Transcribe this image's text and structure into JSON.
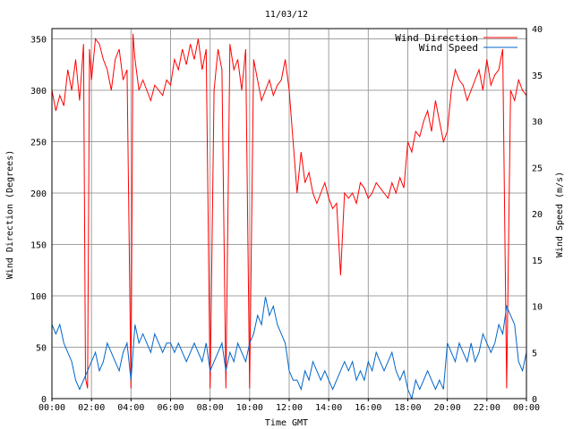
{
  "chart_data": {
    "type": "line",
    "title": "11/03/12",
    "xlabel": "Time GMT",
    "ylabel_left": "Wind Direction (Degrees)",
    "ylabel_right": "Wind Speed (m/s)",
    "x_ticks": [
      "00:00",
      "02:00",
      "04:00",
      "06:00",
      "08:00",
      "10:00",
      "12:00",
      "14:00",
      "16:00",
      "18:00",
      "20:00",
      "22:00",
      "00:00"
    ],
    "xlim_hours": [
      0,
      24
    ],
    "ylim_left": [
      0,
      360
    ],
    "ylim_right": [
      0,
      40
    ],
    "y_ticks_left": [
      0,
      50,
      100,
      150,
      200,
      250,
      300,
      350
    ],
    "y_ticks_right": [
      0,
      5,
      10,
      15,
      20,
      25,
      30,
      35,
      40
    ],
    "grid": true,
    "legend_position": "top-right",
    "series": [
      {
        "name": "Wind Direction",
        "axis": "left",
        "color": "#ff0000",
        "x_hours": [
          0,
          0.2,
          0.4,
          0.6,
          0.8,
          1.0,
          1.2,
          1.4,
          1.6,
          1.7,
          1.8,
          1.9,
          2.0,
          2.2,
          2.4,
          2.6,
          2.8,
          3.0,
          3.2,
          3.4,
          3.6,
          3.8,
          4.0,
          4.1,
          4.2,
          4.4,
          4.6,
          4.8,
          5.0,
          5.2,
          5.4,
          5.6,
          5.8,
          6.0,
          6.2,
          6.4,
          6.6,
          6.8,
          7.0,
          7.2,
          7.4,
          7.6,
          7.8,
          8.0,
          8.2,
          8.4,
          8.6,
          8.8,
          9.0,
          9.2,
          9.4,
          9.6,
          9.8,
          10.0,
          10.2,
          10.4,
          10.6,
          10.8,
          11.0,
          11.2,
          11.4,
          11.6,
          11.8,
          12.0,
          12.2,
          12.4,
          12.6,
          12.8,
          13.0,
          13.2,
          13.4,
          13.6,
          13.8,
          14.0,
          14.2,
          14.4,
          14.6,
          14.8,
          15.0,
          15.2,
          15.4,
          15.6,
          15.8,
          16.0,
          16.2,
          16.4,
          16.6,
          16.8,
          17.0,
          17.2,
          17.4,
          17.6,
          17.8,
          18.0,
          18.2,
          18.4,
          18.6,
          18.8,
          19.0,
          19.2,
          19.4,
          19.6,
          19.8,
          20.0,
          20.2,
          20.4,
          20.6,
          20.8,
          21.0,
          21.2,
          21.4,
          21.6,
          21.8,
          22.0,
          22.2,
          22.4,
          22.6,
          22.8,
          23.0,
          23.2,
          23.4,
          23.6,
          23.8,
          24.0
        ],
        "values": [
          300,
          280,
          295,
          285,
          320,
          300,
          330,
          290,
          345,
          20,
          10,
          340,
          310,
          350,
          345,
          330,
          320,
          300,
          330,
          340,
          310,
          320,
          10,
          355,
          330,
          300,
          310,
          300,
          290,
          305,
          300,
          295,
          310,
          305,
          330,
          320,
          340,
          325,
          345,
          330,
          350,
          320,
          340,
          10,
          300,
          340,
          320,
          10,
          345,
          320,
          330,
          300,
          340,
          10,
          330,
          310,
          290,
          300,
          310,
          295,
          305,
          310,
          330,
          300,
          250,
          200,
          240,
          210,
          220,
          200,
          190,
          200,
          210,
          195,
          185,
          190,
          120,
          200,
          195,
          200,
          190,
          210,
          205,
          195,
          200,
          210,
          205,
          200,
          195,
          210,
          200,
          215,
          205,
          250,
          240,
          260,
          255,
          270,
          280,
          260,
          290,
          270,
          250,
          260,
          300,
          320,
          310,
          305,
          290,
          300,
          310,
          320,
          300,
          330,
          305,
          315,
          320,
          340,
          10,
          300,
          290,
          310,
          300,
          295
        ]
      },
      {
        "name": "Wind Speed",
        "axis": "right",
        "color": "#0066cc",
        "x_hours": [
          0,
          0.2,
          0.4,
          0.6,
          0.8,
          1.0,
          1.2,
          1.4,
          1.6,
          1.8,
          2.0,
          2.2,
          2.4,
          2.6,
          2.8,
          3.0,
          3.2,
          3.4,
          3.6,
          3.8,
          4.0,
          4.2,
          4.4,
          4.6,
          4.8,
          5.0,
          5.2,
          5.4,
          5.6,
          5.8,
          6.0,
          6.2,
          6.4,
          6.6,
          6.8,
          7.0,
          7.2,
          7.4,
          7.6,
          7.8,
          8.0,
          8.2,
          8.4,
          8.6,
          8.8,
          9.0,
          9.2,
          9.4,
          9.6,
          9.8,
          10.0,
          10.2,
          10.4,
          10.6,
          10.8,
          11.0,
          11.2,
          11.4,
          11.6,
          11.8,
          12.0,
          12.2,
          12.4,
          12.6,
          12.8,
          13.0,
          13.2,
          13.4,
          13.6,
          13.8,
          14.0,
          14.2,
          14.4,
          14.6,
          14.8,
          15.0,
          15.2,
          15.4,
          15.6,
          15.8,
          16.0,
          16.2,
          16.4,
          16.6,
          16.8,
          17.0,
          17.2,
          17.4,
          17.6,
          17.8,
          18.0,
          18.2,
          18.4,
          18.6,
          18.8,
          19.0,
          19.2,
          19.4,
          19.6,
          19.8,
          20.0,
          20.2,
          20.4,
          20.6,
          20.8,
          21.0,
          21.2,
          21.4,
          21.6,
          21.8,
          22.0,
          22.2,
          22.4,
          22.6,
          22.8,
          23.0,
          23.2,
          23.4,
          23.6,
          23.8,
          24.0
        ],
        "values": [
          8,
          7,
          8,
          6,
          5,
          4,
          2,
          1,
          2,
          3,
          4,
          5,
          3,
          4,
          6,
          5,
          4,
          3,
          5,
          6,
          2,
          8,
          6,
          7,
          6,
          5,
          7,
          6,
          5,
          6,
          6,
          5,
          6,
          5,
          4,
          5,
          6,
          5,
          4,
          6,
          3,
          4,
          5,
          6,
          3,
          5,
          4,
          6,
          5,
          4,
          6,
          7,
          9,
          8,
          11,
          9,
          10,
          8,
          7,
          6,
          3,
          2,
          2,
          1,
          3,
          2,
          4,
          3,
          2,
          3,
          2,
          1,
          2,
          3,
          4,
          3,
          4,
          2,
          3,
          2,
          4,
          3,
          5,
          4,
          3,
          4,
          5,
          3,
          2,
          3,
          1,
          0,
          2,
          1,
          2,
          3,
          2,
          1,
          2,
          1,
          6,
          5,
          4,
          6,
          5,
          4,
          6,
          4,
          5,
          7,
          6,
          5,
          6,
          8,
          7,
          10,
          9,
          8,
          4,
          3,
          5
        ]
      }
    ]
  }
}
